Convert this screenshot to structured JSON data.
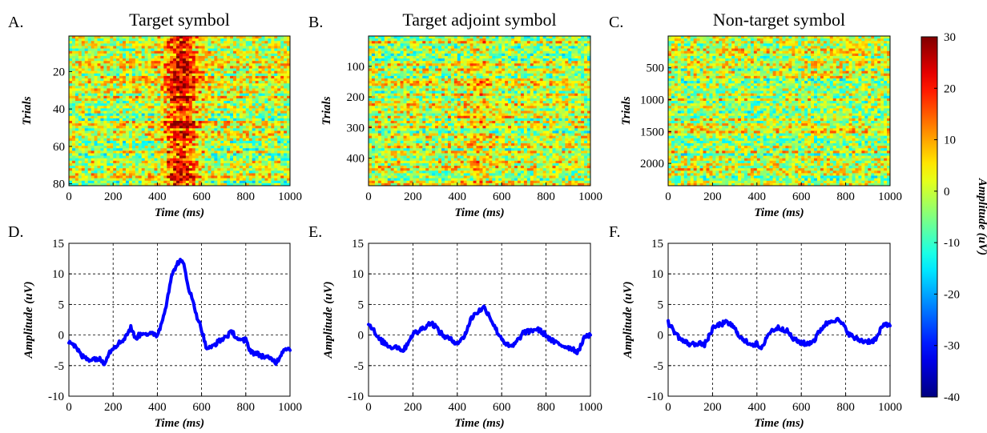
{
  "chart_data": [
    {
      "panel": "A.",
      "type": "heatmap",
      "title": "Target symbol",
      "xlabel": "Time (ms)",
      "ylabel": "Trials",
      "xlim": [
        0,
        1000
      ],
      "ylim": [
        1,
        81
      ],
      "xticks": [
        0,
        200,
        400,
        600,
        800,
        1000
      ],
      "yticks": [
        20,
        40,
        60,
        80
      ],
      "rows": 81,
      "pattern": "Strong positive band between ~420 and ~600 ms across nearly all trials, peak ~500 ms"
    },
    {
      "panel": "B.",
      "type": "heatmap",
      "title": "Target adjoint symbol",
      "xlabel": "Time (ms)",
      "ylabel": "Trials",
      "xlim": [
        0,
        1000
      ],
      "ylim": [
        1,
        490
      ],
      "xticks": [
        0,
        200,
        400,
        600,
        800,
        1000
      ],
      "yticks": [
        100,
        200,
        300,
        400
      ],
      "rows": 490,
      "pattern": "Weak positive band near ~500 ms"
    },
    {
      "panel": "C.",
      "type": "heatmap",
      "title": "Non-target symbol",
      "xlabel": "Time (ms)",
      "ylabel": "Trials",
      "xlim": [
        0,
        1000
      ],
      "ylim": [
        1,
        2350
      ],
      "xticks": [
        0,
        200,
        400,
        600,
        800,
        1000
      ],
      "yticks": [
        500,
        1000,
        1500,
        2000
      ],
      "rows": 2350,
      "pattern": "No consistent band, noise only"
    },
    {
      "panel": "D.",
      "type": "line",
      "title": "",
      "xlabel": "Time (ms)",
      "ylabel": "Amplitude (uV)",
      "xlim": [
        0,
        1000
      ],
      "ylim": [
        -10,
        15
      ],
      "xticks": [
        0,
        200,
        400,
        600,
        800,
        1000
      ],
      "yticks": [
        -10,
        -5,
        0,
        5,
        10,
        15
      ],
      "grid": true,
      "color": "#0000ff",
      "x": [
        0,
        20,
        40,
        60,
        80,
        100,
        120,
        140,
        160,
        180,
        200,
        220,
        240,
        260,
        280,
        300,
        320,
        340,
        360,
        380,
        400,
        420,
        440,
        460,
        480,
        500,
        520,
        540,
        560,
        580,
        600,
        620,
        640,
        660,
        680,
        700,
        720,
        740,
        760,
        780,
        800,
        820,
        840,
        860,
        880,
        900,
        920,
        940,
        960,
        980,
        1000
      ],
      "y": [
        -1,
        -1.5,
        -2.5,
        -3.5,
        -3.8,
        -4,
        -3.8,
        -4,
        -4.5,
        -3,
        -2,
        -1.5,
        -1,
        0,
        1.2,
        -0.5,
        0,
        0.5,
        0,
        0.2,
        0,
        2,
        5,
        9,
        11,
        12.2,
        11.5,
        8,
        5.5,
        3,
        1,
        -2,
        -2.2,
        -1.5,
        -1,
        -0.5,
        0,
        0.5,
        -0.5,
        -1,
        -0.8,
        -2.5,
        -3,
        -3.2,
        -3.5,
        -3.8,
        -4,
        -4.5,
        -3,
        -2,
        -2.5
      ]
    },
    {
      "panel": "E.",
      "type": "line",
      "title": "",
      "xlabel": "Time (ms)",
      "ylabel": "Amplitude (uV)",
      "xlim": [
        0,
        1000
      ],
      "ylim": [
        -10,
        15
      ],
      "xticks": [
        0,
        200,
        400,
        600,
        800,
        1000
      ],
      "yticks": [
        -10,
        -5,
        0,
        5,
        10,
        15
      ],
      "grid": true,
      "color": "#0000ff",
      "x": [
        0,
        20,
        40,
        60,
        80,
        100,
        120,
        140,
        160,
        180,
        200,
        220,
        240,
        260,
        280,
        300,
        320,
        340,
        360,
        380,
        400,
        420,
        440,
        460,
        480,
        500,
        520,
        540,
        560,
        580,
        600,
        620,
        640,
        660,
        680,
        700,
        720,
        740,
        760,
        780,
        800,
        820,
        840,
        860,
        880,
        900,
        920,
        940,
        960,
        980,
        1000
      ],
      "y": [
        2,
        1,
        -0.5,
        -1,
        -1.5,
        -2,
        -1.8,
        -2.2,
        -2.5,
        -1,
        0.2,
        0.5,
        1,
        1.5,
        2,
        1.5,
        0.5,
        -0.2,
        -0.5,
        -1,
        -1.2,
        -0.8,
        0.5,
        2.5,
        3.5,
        4,
        4.5,
        3.5,
        2,
        0.5,
        -0.5,
        -1.5,
        -2,
        -1.5,
        -0.5,
        0.5,
        0.5,
        0.8,
        1,
        0.5,
        0,
        -0.8,
        -1.2,
        -1.5,
        -1.8,
        -2,
        -2.2,
        -2.8,
        -1.5,
        0,
        0
      ]
    },
    {
      "panel": "F.",
      "type": "line",
      "title": "",
      "xlabel": "Time (ms)",
      "ylabel": "Amplitude (uV)",
      "xlim": [
        0,
        1000
      ],
      "ylim": [
        -10,
        15
      ],
      "xticks": [
        0,
        200,
        400,
        600,
        800,
        1000
      ],
      "yticks": [
        -10,
        -5,
        0,
        5,
        10,
        15
      ],
      "grid": true,
      "color": "#0000ff",
      "x": [
        0,
        20,
        40,
        60,
        80,
        100,
        120,
        140,
        160,
        180,
        200,
        220,
        240,
        260,
        280,
        300,
        320,
        340,
        360,
        380,
        400,
        420,
        440,
        460,
        480,
        500,
        520,
        540,
        560,
        580,
        600,
        620,
        640,
        660,
        680,
        700,
        720,
        740,
        760,
        780,
        800,
        820,
        840,
        860,
        880,
        900,
        920,
        940,
        960,
        980,
        1000
      ],
      "y": [
        2,
        1,
        0,
        -0.8,
        -1.2,
        -1.5,
        -1.5,
        -1.2,
        -1.8,
        -0.5,
        1,
        1.5,
        1.8,
        2,
        1.8,
        1,
        0,
        -1,
        -1.2,
        -1.5,
        -1.5,
        -2.5,
        -0.5,
        0.5,
        1,
        1.2,
        1,
        0.5,
        -0.5,
        -1,
        -1.2,
        -1.5,
        -1.2,
        -0.8,
        0.5,
        1.5,
        2,
        2.5,
        2.5,
        2,
        1,
        0,
        -0.5,
        -0.8,
        -1,
        -1,
        -1,
        -0.5,
        1,
        2,
        1.5
      ]
    }
  ],
  "colorbar": {
    "label": "Amplitude (uV)",
    "min": -40,
    "max": 30,
    "ticks": [
      30,
      20,
      10,
      0,
      -10,
      -20,
      -30,
      -40
    ],
    "colormap": "jet"
  }
}
